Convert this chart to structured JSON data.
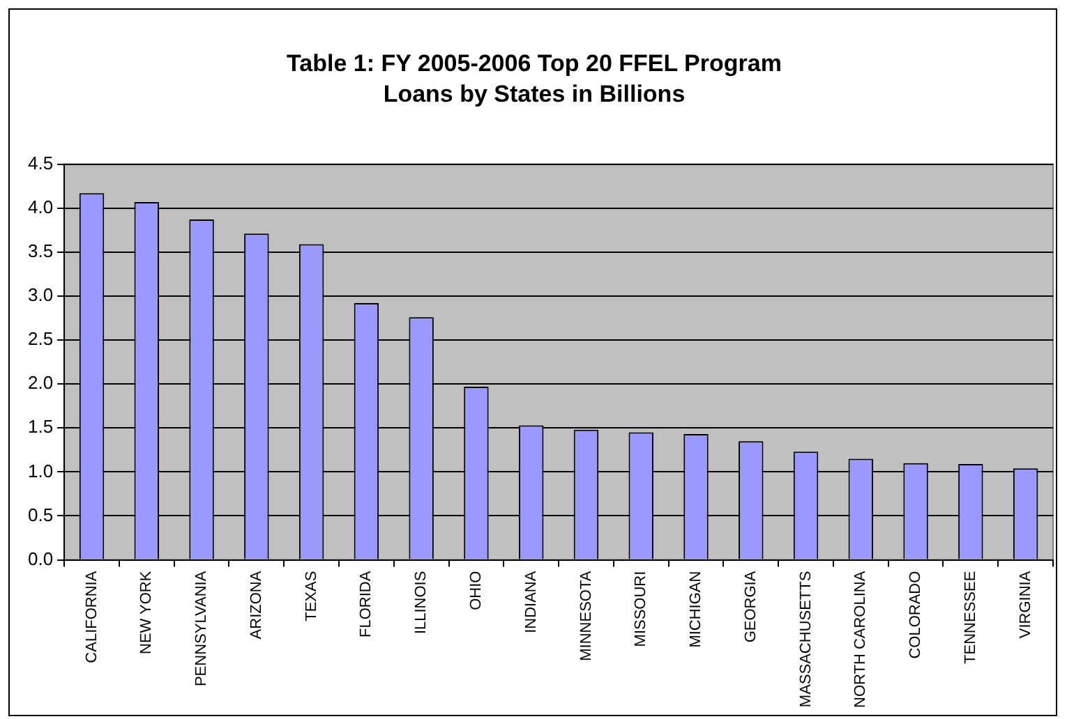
{
  "chart_data": {
    "type": "bar",
    "title": "Table 1: FY 2005-2006 Top 20 FFEL Program Loans by States in Billions",
    "categories": [
      "CALIFORNIA",
      "NEW YORK",
      "PENNSYLVANIA",
      "ARIZONA",
      "TEXAS",
      "FLORIDA",
      "ILLINOIS",
      "OHIO",
      "INDIANA",
      "MINNESOTA",
      "MISSOURI",
      "MICHIGAN",
      "GEORGIA",
      "MASSACHUSETTS",
      "NORTH CAROLINA",
      "COLORADO",
      "TENNESSEE",
      "VIRGINIA"
    ],
    "values": [
      4.17,
      4.07,
      3.87,
      3.71,
      3.59,
      2.92,
      2.76,
      1.97,
      1.53,
      1.48,
      1.45,
      1.43,
      1.35,
      1.23,
      1.15,
      1.1,
      1.09,
      1.04
    ],
    "color": "#9999ff",
    "ylim": [
      0,
      4.5
    ],
    "yticks": [
      {
        "value": 0,
        "label": "0.0"
      },
      {
        "value": 0.5,
        "label": "0.5"
      },
      {
        "value": 1,
        "label": "1.0"
      },
      {
        "value": 1.5,
        "label": "1.5"
      },
      {
        "value": 2,
        "label": "2.0"
      },
      {
        "value": 2.5,
        "label": "2.5"
      },
      {
        "value": 3,
        "label": "3.0"
      },
      {
        "value": 3.5,
        "label": "3.5"
      },
      {
        "value": 4,
        "label": "4.0"
      },
      {
        "value": 4.5,
        "label": "4.5"
      }
    ],
    "grid": "y",
    "legend": false
  }
}
